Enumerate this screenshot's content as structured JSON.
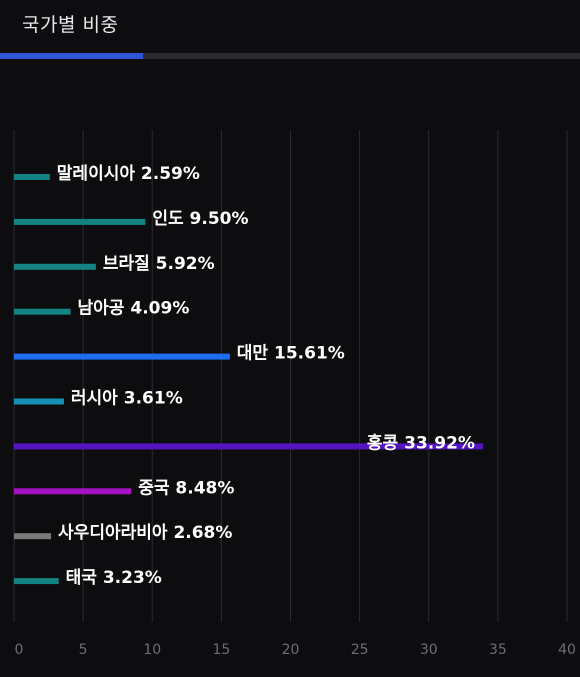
{
  "header": {
    "title": "국가별 비중"
  },
  "colors": {
    "background": "#0d0d0f",
    "tab_track": "#2b2c30",
    "tab_active": "#2f55d4",
    "grid": "#2c2d31"
  },
  "chart_data": {
    "type": "bar",
    "orientation": "horizontal",
    "categories": [
      "말레이시아",
      "인도",
      "브라질",
      "남아공",
      "대만",
      "러시아",
      "홍콩",
      "중국",
      "사우디아라비아",
      "태국"
    ],
    "values": [
      2.59,
      9.5,
      5.92,
      4.09,
      15.61,
      3.61,
      33.92,
      8.48,
      2.68,
      3.23
    ],
    "labels": [
      "말레이시아 2.59%",
      "인도 9.50%",
      "브라질 5.92%",
      "남아공 4.09%",
      "대만 15.61%",
      "러시아 3.61%",
      "홍콩 33.92%",
      "중국 8.48%",
      "사우디아라비아 2.68%",
      "태국 3.23%"
    ],
    "colors": [
      "#138383",
      "#138383",
      "#138383",
      "#138383",
      "#1d6ef0",
      "#1592b3",
      "#5514c4",
      "#a412c2",
      "#7a7a7a",
      "#138383"
    ],
    "xlim": [
      0,
      40
    ],
    "xticks": [
      0,
      5,
      10,
      15,
      20,
      25,
      30,
      35,
      40
    ],
    "xtick_labels": [
      "0",
      "5",
      "10",
      "15",
      "20",
      "25",
      "30",
      "35",
      "40"
    ],
    "grid": true
  }
}
